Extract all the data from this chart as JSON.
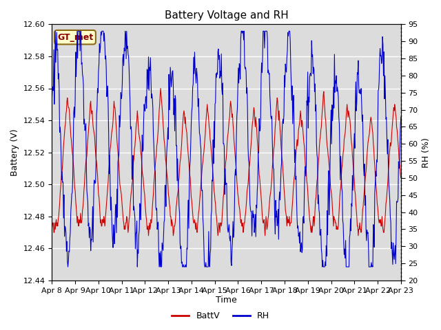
{
  "title": "Battery Voltage and RH",
  "xlabel": "Time",
  "ylabel_left": "Battery (V)",
  "ylabel_right": "RH (%)",
  "annotation": "GT_met",
  "x_tick_labels": [
    "Apr 8",
    "Apr 9",
    "Apr 10",
    "Apr 11",
    "Apr 12",
    "Apr 13",
    "Apr 14",
    "Apr 15",
    "Apr 16",
    "Apr 17",
    "Apr 18",
    "Apr 19",
    "Apr 20",
    "Apr 21",
    "Apr 22",
    "Apr 23"
  ],
  "ylim_left": [
    12.44,
    12.6
  ],
  "ylim_right": [
    20,
    95
  ],
  "yticks_left": [
    12.44,
    12.46,
    12.48,
    12.5,
    12.52,
    12.54,
    12.56,
    12.58,
    12.6
  ],
  "yticks_right": [
    20,
    25,
    30,
    35,
    40,
    45,
    50,
    55,
    60,
    65,
    70,
    75,
    80,
    85,
    90,
    95
  ],
  "line_color_batt": "#cc0000",
  "line_color_rh": "#0000cc",
  "bg_color": "#dcdcdc",
  "legend_label_batt": "BattV",
  "legend_label_rh": "RH",
  "title_fontsize": 11,
  "axis_fontsize": 9,
  "tick_fontsize": 8
}
